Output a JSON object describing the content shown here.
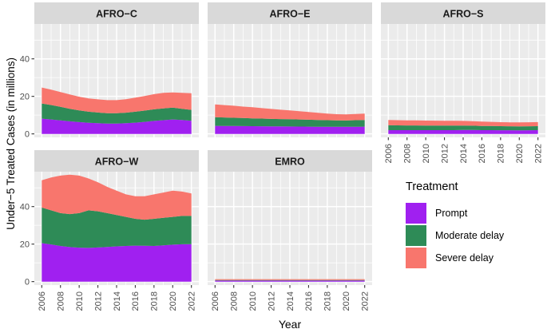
{
  "chart_data": {
    "type": "area",
    "subtype": "stacked-area-facets",
    "title": "",
    "xlabel": "Year",
    "ylabel": "Under−5 Treated Cases (in millions)",
    "x": [
      2006,
      2007,
      2008,
      2009,
      2010,
      2011,
      2012,
      2013,
      2014,
      2015,
      2016,
      2017,
      2018,
      2019,
      2020,
      2021,
      2022
    ],
    "x_ticks": [
      2006,
      2008,
      2010,
      2012,
      2014,
      2016,
      2018,
      2020,
      2022
    ],
    "y_ticks": [
      0,
      20,
      40
    ],
    "y_minor_ticks": [
      10,
      30,
      50
    ],
    "ylim": [
      0,
      57
    ],
    "grid": true,
    "legend": {
      "title": "Treatment",
      "position": "right",
      "items": [
        {
          "label": "Prompt",
          "color": "#A020F0"
        },
        {
          "label": "Moderate delay",
          "color": "#2E8B57"
        },
        {
          "label": "Severe delay",
          "color": "#F8766D"
        }
      ]
    },
    "facets": [
      {
        "label": "AFRO−C",
        "series": [
          {
            "name": "Prompt",
            "values": [
              8.1,
              7.7,
              7.2,
              6.7,
              6.3,
              5.9,
              5.7,
              5.5,
              5.5,
              5.7,
              6.0,
              6.4,
              6.9,
              7.3,
              7.7,
              7.4,
              7.0
            ]
          },
          {
            "name": "Moderate delay",
            "values": [
              8.1,
              7.7,
              7.2,
              6.7,
              6.2,
              5.9,
              5.7,
              5.5,
              5.5,
              5.6,
              5.8,
              6.0,
              6.2,
              6.3,
              6.3,
              6.0,
              5.8
            ]
          },
          {
            "name": "Severe delay",
            "values": [
              8.5,
              8.2,
              7.9,
              7.6,
              7.3,
              7.1,
              7.0,
              7.0,
              7.0,
              7.2,
              7.5,
              7.8,
              8.1,
              8.3,
              8.1,
              8.5,
              8.9
            ]
          }
        ]
      },
      {
        "label": "AFRO−E",
        "series": [
          {
            "name": "Prompt",
            "values": [
              4.3,
              4.25,
              4.2,
              4.15,
              4.1,
              4.05,
              4.0,
              4.0,
              3.95,
              3.9,
              3.85,
              3.8,
              3.8,
              3.75,
              3.75,
              3.8,
              3.85
            ]
          },
          {
            "name": "Moderate delay",
            "values": [
              4.6,
              4.5,
              4.4,
              4.3,
              4.2,
              4.1,
              4.0,
              3.9,
              3.85,
              3.8,
              3.7,
              3.6,
              3.5,
              3.45,
              3.4,
              3.5,
              3.55
            ]
          },
          {
            "name": "Severe delay",
            "values": [
              6.8,
              6.6,
              6.4,
              6.1,
              5.9,
              5.6,
              5.3,
              5.0,
              4.7,
              4.4,
              4.1,
              3.8,
              3.5,
              3.3,
              3.2,
              3.3,
              3.4
            ]
          }
        ]
      },
      {
        "label": "AFRO−S",
        "series": [
          {
            "name": "Prompt",
            "values": [
              2.0,
              2.0,
              2.0,
              2.0,
              2.0,
              2.0,
              2.0,
              2.0,
              2.05,
              2.05,
              2.0,
              2.0,
              1.95,
              1.95,
              1.9,
              1.95,
              2.0
            ]
          },
          {
            "name": "Moderate delay",
            "values": [
              2.6,
              2.55,
              2.5,
              2.5,
              2.45,
              2.45,
              2.4,
              2.4,
              2.35,
              2.3,
              2.25,
              2.2,
              2.15,
              2.1,
              2.1,
              2.1,
              2.1
            ]
          },
          {
            "name": "Severe delay",
            "values": [
              2.8,
              2.75,
              2.7,
              2.7,
              2.65,
              2.6,
              2.6,
              2.55,
              2.5,
              2.4,
              2.3,
              2.2,
              2.15,
              2.1,
              2.1,
              2.15,
              2.2
            ]
          }
        ]
      },
      {
        "label": "AFRO−W",
        "series": [
          {
            "name": "Prompt",
            "values": [
              20.5,
              19.8,
              19.0,
              18.4,
              18.1,
              18.0,
              18.2,
              18.5,
              18.8,
              19.0,
              19.2,
              19.1,
              19.0,
              19.3,
              19.7,
              19.9,
              20.0
            ]
          },
          {
            "name": "Moderate delay",
            "values": [
              19.0,
              18.2,
              17.5,
              17.6,
              18.4,
              20.0,
              19.3,
              18.0,
              16.7,
              15.5,
              14.3,
              13.9,
              14.5,
              14.7,
              14.8,
              15.1,
              15.0
            ]
          },
          {
            "name": "Severe delay",
            "values": [
              14.5,
              17.5,
              20.0,
              21.0,
              20.0,
              17.0,
              15.5,
              14.0,
              13.0,
              12.0,
              12.0,
              12.5,
              13.0,
              13.5,
              14.0,
              13.0,
              12.0
            ]
          }
        ]
      },
      {
        "label": "EMRO",
        "series": [
          {
            "name": "Prompt",
            "values": [
              0.55,
              0.55,
              0.55,
              0.55,
              0.55,
              0.55,
              0.55,
              0.55,
              0.55,
              0.55,
              0.55,
              0.55,
              0.55,
              0.55,
              0.55,
              0.55,
              0.55
            ]
          },
          {
            "name": "Moderate delay",
            "values": [
              0.3,
              0.3,
              0.3,
              0.3,
              0.3,
              0.3,
              0.3,
              0.3,
              0.3,
              0.3,
              0.3,
              0.3,
              0.3,
              0.3,
              0.3,
              0.3,
              0.3
            ]
          },
          {
            "name": "Severe delay",
            "values": [
              0.45,
              0.45,
              0.45,
              0.45,
              0.45,
              0.45,
              0.45,
              0.45,
              0.45,
              0.45,
              0.45,
              0.45,
              0.45,
              0.45,
              0.45,
              0.45,
              0.45
            ]
          }
        ]
      }
    ]
  },
  "theme": {
    "panel_bg": "#EBEBEB",
    "strip_bg": "#D9D9D9",
    "grid_color": "#FFFFFF",
    "axis_text_color": "#4D4D4D",
    "tick_mark_color": "#333333",
    "strip_text_color": "#1A1A1A"
  }
}
